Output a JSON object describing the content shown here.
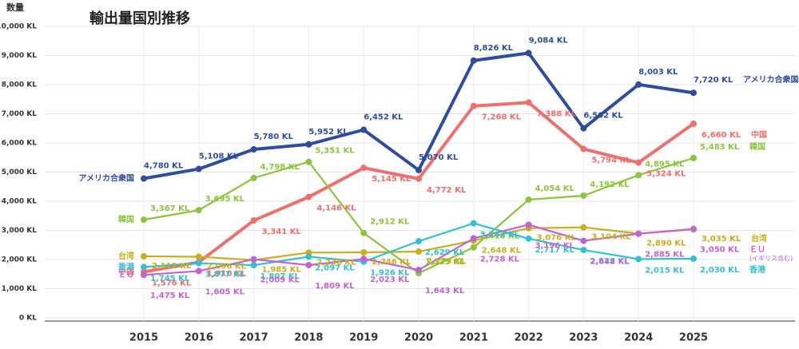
{
  "chart_data": {
    "type": "line",
    "title": "輸出量国別推移",
    "ylabel": "数量",
    "x": [
      "2015",
      "2016",
      "2017",
      "2018",
      "2019",
      "2020",
      "2021",
      "2022",
      "2023",
      "2024",
      "2025"
    ],
    "ylim": [
      0,
      10000
    ],
    "yticks": [
      {
        "value": 0,
        "label": "0 KL"
      },
      {
        "value": 1000,
        "label": "1,000 KL"
      },
      {
        "value": 2000,
        "label": "2,000 KL"
      },
      {
        "value": 3000,
        "label": "3,000 KL"
      },
      {
        "value": 4000,
        "label": "4,000 KL"
      },
      {
        "value": 5000,
        "label": "5,000 KL"
      },
      {
        "value": 6000,
        "label": "6,000 KL"
      },
      {
        "value": 7000,
        "label": "7,000 KL"
      },
      {
        "value": 8000,
        "label": "8,000 KL"
      },
      {
        "value": 9000,
        "label": "9,000 KL"
      },
      {
        "value": 10000,
        "label": "10,000 KL"
      }
    ],
    "grid": true,
    "series": [
      {
        "name": "アメリカ合衆国",
        "color": "#2e4d9c",
        "values": [
          4780,
          5108,
          5780,
          5952,
          6452,
          5070,
          8826,
          9084,
          6502,
          8003,
          7720
        ],
        "value_labels": [
          "4,780 KL",
          "5,108 KL",
          "5,780 KL",
          "5,952 KL",
          "6,452 KL",
          "5,070 KL",
          "8,826 KL",
          "9,084 KL",
          "6,502 KL",
          "8,003 KL",
          "7,720 KL"
        ]
      },
      {
        "name": "中国",
        "color": "#ef6f6c",
        "values": [
          1576,
          1910,
          3341,
          4146,
          5145,
          4772,
          7268,
          7388,
          5794,
          5324,
          6660
        ],
        "value_labels": [
          "1,576 KL",
          "1,910 KL",
          "3,341 KL",
          "4,146 KL",
          "5,145 KL",
          "4,772 KL",
          "7,268 KL",
          "7,388 KL",
          "5,794 KL",
          "5,324 KL",
          "6,660 KL"
        ]
      },
      {
        "name": "韓国",
        "color": "#8cc43e",
        "values": [
          3367,
          3695,
          4798,
          5351,
          2912,
          1535,
          2418,
          4054,
          4192,
          4895,
          5483
        ],
        "value_labels": [
          "3,367 KL",
          "3,695 KL",
          "4,798 KL",
          "5,351 KL",
          "2,912 KL",
          "1,535 KL",
          "2,418 KL",
          "4,054 KL",
          "4,192 KL",
          "4,895 KL",
          "5,483 KL"
        ]
      },
      {
        "name": "台湾",
        "color": "#c9ae1e",
        "values": [
          2112,
          2096,
          1985,
          2238,
          2246,
          2273,
          2648,
          3076,
          3104,
          2890,
          3035
        ],
        "value_labels": [
          "2,112 KL",
          "2,096 KL",
          "1,985 KL",
          "2,238 KL",
          "2,246 KL",
          "2,273 KL",
          "2,648 KL",
          "3,076 KL",
          "3,104 KL",
          "2,890 KL",
          "3,035 KL"
        ]
      },
      {
        "name": "香港",
        "color": "#33c0d2",
        "values": [
          1745,
          1877,
          1807,
          2097,
          1926,
          2629,
          3243,
          2717,
          2328,
          2015,
          2030
        ],
        "value_labels": [
          "1,745 KL",
          "1,877 KL",
          "1,807 KL",
          "2,097 KL",
          "1,926 KL",
          "2,629 KL",
          "3,243 KL",
          "2,717 KL",
          "2,328 KL",
          "2,015 KL",
          "2,030 KL"
        ]
      },
      {
        "name": "ＥＵ",
        "name_note": "(イギリス含む)",
        "color": "#c263d4",
        "values": [
          1475,
          1605,
          2009,
          1809,
          2023,
          1643,
          2728,
          3196,
          2642,
          2885,
          3050
        ],
        "value_labels": [
          "1,475 KL",
          "1,605 KL",
          "2,009 KL",
          "1,809 KL",
          "2,023 KL",
          "1,643 KL",
          "2,728 KL",
          "3,196 KL",
          "2,642 KL",
          "2,885 KL",
          "3,050 KL"
        ]
      }
    ]
  }
}
